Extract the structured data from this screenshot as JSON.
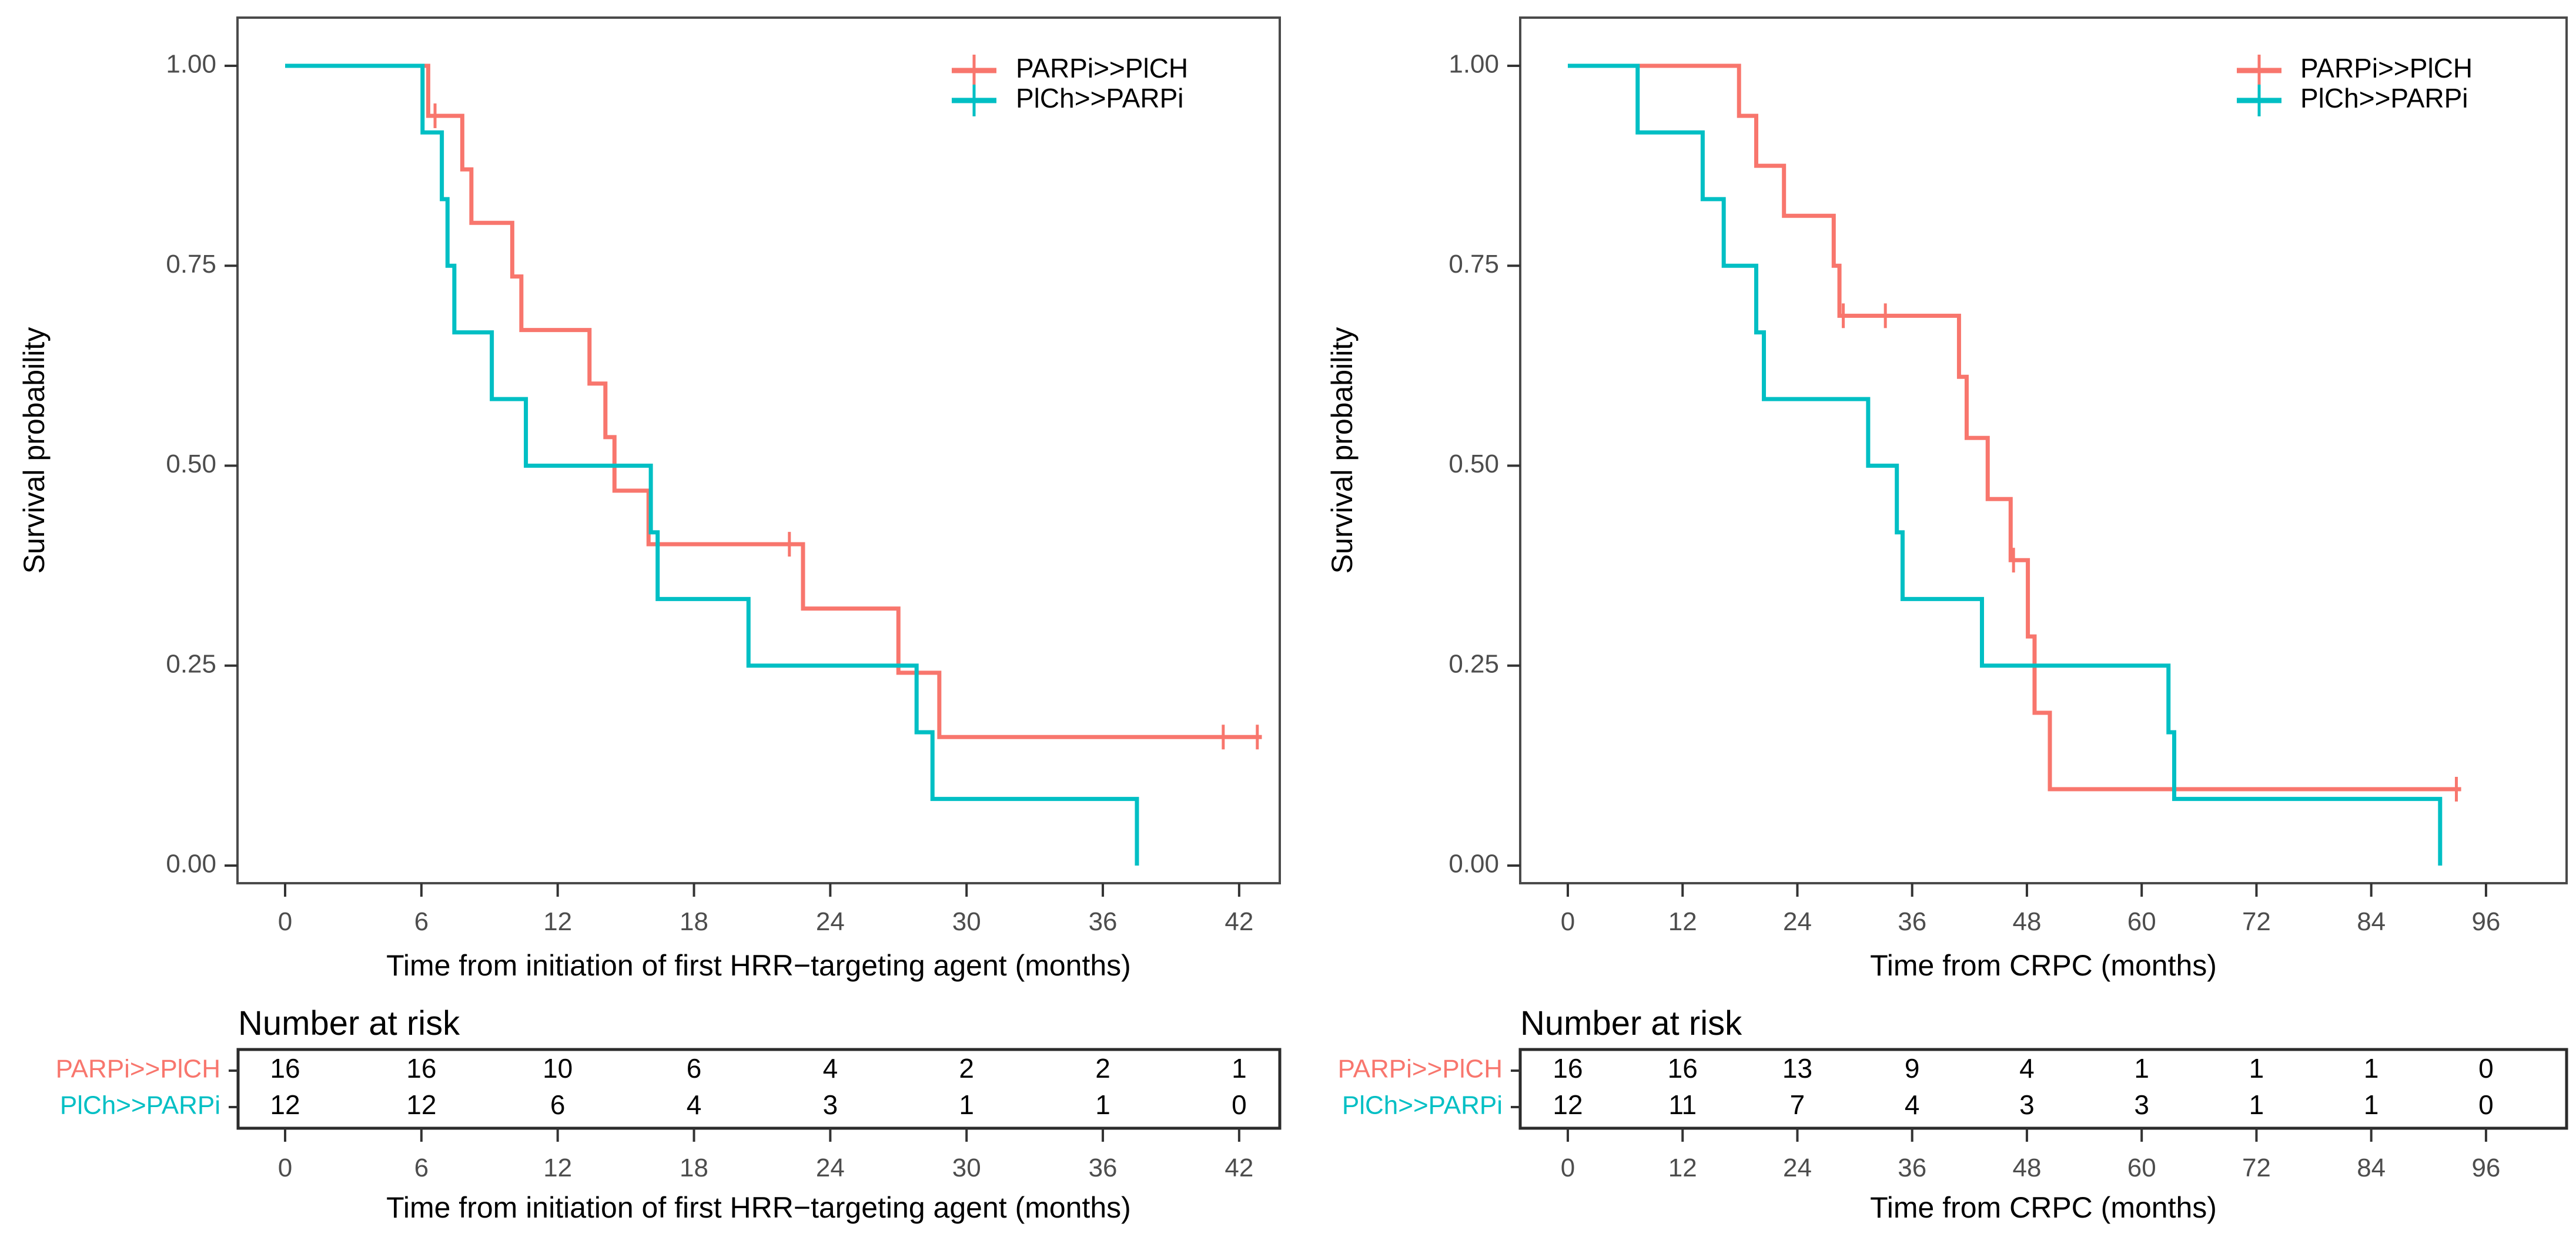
{
  "figure": {
    "y_axis_title": "Survival probability",
    "y_tick_labels": [
      "1.00",
      "0.75",
      "0.50",
      "0.25",
      "0.00"
    ],
    "risk_table_title": "Number at risk",
    "colors": {
      "parpi_first": "#F8766D",
      "chemo_first": "#00BFC4",
      "tick_label": "#4d4d4d",
      "axis_text": "#000000",
      "panel_border": "#4a4a4a",
      "risk_border": "#2b2b2b"
    }
  },
  "chart_data": [
    {
      "type": "km_step",
      "panel": "left",
      "xlabel": "Time from initiation of first HRR−targeting agent (months)",
      "ylabel": "Survival probability",
      "xticks": [
        0,
        6,
        12,
        18,
        24,
        30,
        36,
        42
      ],
      "yticks": [
        1.0,
        0.75,
        0.5,
        0.25,
        0.0
      ],
      "ylim": [
        0,
        1
      ],
      "legend_position": "top-right",
      "grid": false,
      "series": [
        {
          "name": "PARPi>>PlCH",
          "color": "#F8766D",
          "n": 16,
          "start": [
            0,
            1.0
          ],
          "steps": [
            [
              6.3,
              0.9375
            ],
            [
              7.8,
              0.8705
            ],
            [
              8.2,
              0.8036
            ],
            [
              10.0,
              0.7366
            ],
            [
              10.4,
              0.6696
            ],
            [
              13.4,
              0.6027
            ],
            [
              14.1,
              0.5357
            ],
            [
              14.5,
              0.4688
            ],
            [
              16.0,
              0.4018
            ],
            [
              22.8,
              0.3214
            ],
            [
              27.0,
              0.2411
            ],
            [
              28.8,
              0.1607
            ]
          ],
          "censor_marks": [
            [
              6.6,
              0.9375
            ],
            [
              22.2,
              0.4018
            ],
            [
              41.3,
              0.1607
            ],
            [
              42.8,
              0.1607
            ]
          ],
          "end_time": 43.0
        },
        {
          "name": "PlCh>>PARPi",
          "color": "#00BFC4",
          "n": 12,
          "start": [
            0,
            1.0
          ],
          "steps": [
            [
              6.05,
              0.9167
            ],
            [
              6.9,
              0.8333
            ],
            [
              7.15,
              0.75
            ],
            [
              7.45,
              0.6667
            ],
            [
              9.1,
              0.5833
            ],
            [
              10.6,
              0.5
            ],
            [
              16.1,
              0.4167
            ],
            [
              16.4,
              0.3333
            ],
            [
              20.4,
              0.25
            ],
            [
              27.8,
              0.1667
            ],
            [
              28.5,
              0.0833
            ],
            [
              37.5,
              0.0
            ]
          ],
          "censor_marks": [],
          "end_time": 37.5
        }
      ],
      "risk_table": {
        "title": "Number at risk",
        "times": [
          0,
          6,
          12,
          18,
          24,
          30,
          36,
          42
        ],
        "xlabel": "Time from initiation of first HRR−targeting agent (months)",
        "rows": [
          {
            "label": "PARPi>>PlCH",
            "color": "#F8766D",
            "counts": [
              16,
              16,
              10,
              6,
              4,
              2,
              2,
              1
            ]
          },
          {
            "label": "PlCh>>PARPi",
            "color": "#00BFC4",
            "counts": [
              12,
              12,
              6,
              4,
              3,
              1,
              1,
              0
            ]
          }
        ]
      }
    },
    {
      "type": "km_step",
      "panel": "right",
      "xlabel": "Time from CRPC (months)",
      "ylabel": "Survival probability",
      "xticks": [
        0,
        12,
        24,
        36,
        48,
        60,
        72,
        84,
        96
      ],
      "yticks": [
        1.0,
        0.75,
        0.5,
        0.25,
        0.0
      ],
      "ylim": [
        0,
        1
      ],
      "legend_position": "top-right",
      "grid": false,
      "series": [
        {
          "name": "PARPi>>PlCH",
          "color": "#F8766D",
          "n": 16,
          "start": [
            0,
            1.0
          ],
          "steps": [
            [
              17.9,
              0.9375
            ],
            [
              19.7,
              0.875
            ],
            [
              22.6,
              0.8125
            ],
            [
              27.8,
              0.75
            ],
            [
              28.4,
              0.6875
            ],
            [
              40.9,
              0.6111
            ],
            [
              41.7,
              0.5347
            ],
            [
              43.9,
              0.4583
            ],
            [
              46.3,
              0.3819
            ],
            [
              48.1,
              0.2865
            ],
            [
              48.8,
              0.191
            ],
            [
              50.4,
              0.0955
            ]
          ],
          "censor_marks": [
            [
              28.8,
              0.6875
            ],
            [
              33.2,
              0.6875
            ],
            [
              46.6,
              0.3819
            ],
            [
              92.9,
              0.0955
            ]
          ],
          "end_time": 93.4
        },
        {
          "name": "PlCh>>PARPi",
          "color": "#00BFC4",
          "n": 12,
          "start": [
            0,
            1.0
          ],
          "steps": [
            [
              7.3,
              0.9167
            ],
            [
              14.1,
              0.8333
            ],
            [
              16.3,
              0.75
            ],
            [
              19.7,
              0.6667
            ],
            [
              20.5,
              0.5833
            ],
            [
              31.4,
              0.5
            ],
            [
              34.4,
              0.4167
            ],
            [
              35.0,
              0.3333
            ],
            [
              43.3,
              0.25
            ],
            [
              62.8,
              0.1667
            ],
            [
              63.4,
              0.0833
            ],
            [
              91.2,
              0.0
            ]
          ],
          "censor_marks": [],
          "end_time": 91.2
        }
      ],
      "risk_table": {
        "title": "Number at risk",
        "times": [
          0,
          12,
          24,
          36,
          48,
          60,
          72,
          84,
          96
        ],
        "xlabel": "Time from CRPC (months)",
        "rows": [
          {
            "label": "PARPi>>PlCH",
            "color": "#F8766D",
            "counts": [
              16,
              16,
              13,
              9,
              4,
              1,
              1,
              1,
              0
            ]
          },
          {
            "label": "PlCh>>PARPi",
            "color": "#00BFC4",
            "counts": [
              12,
              11,
              7,
              4,
              3,
              3,
              1,
              1,
              0
            ]
          }
        ]
      }
    }
  ]
}
